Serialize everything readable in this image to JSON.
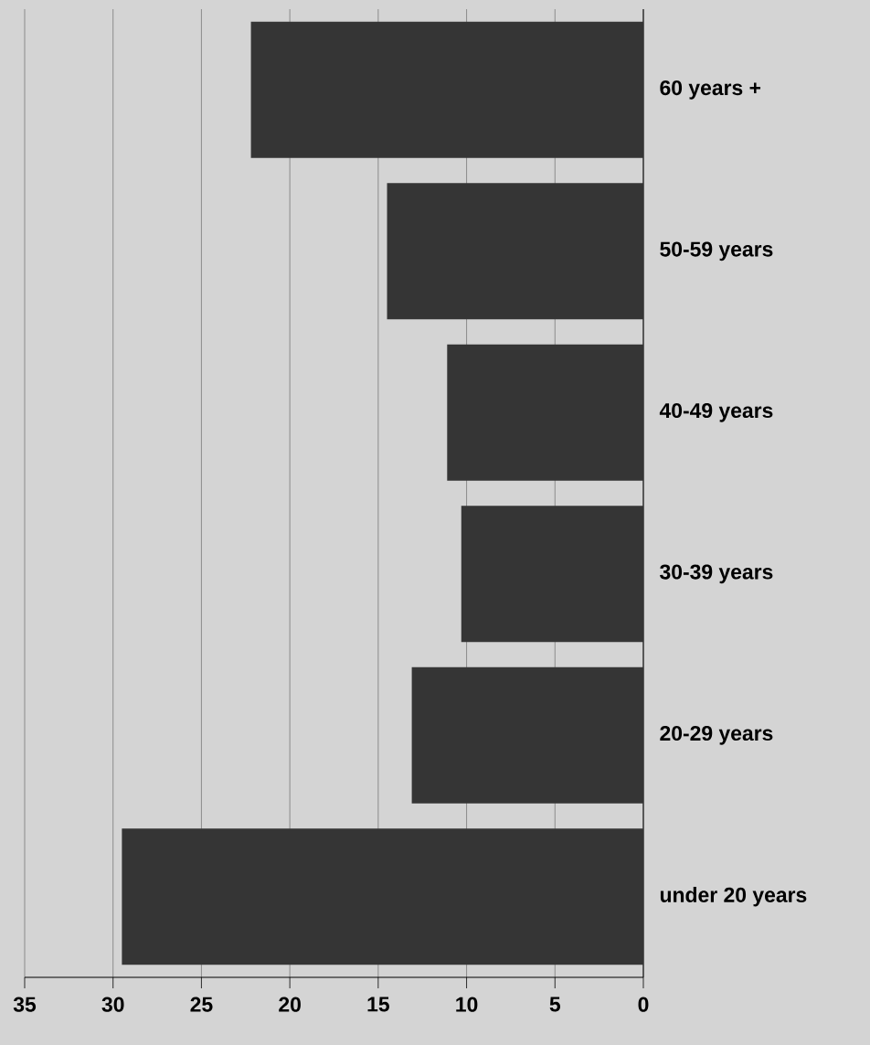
{
  "chart_data": {
    "type": "bar",
    "orientation": "horizontal",
    "categories": [
      "60 years +",
      "50-59 years",
      "40-49 years",
      "30-39 years",
      "20-29 years",
      "under 20 years"
    ],
    "values": [
      22.2,
      14.5,
      11.1,
      10.3,
      13.1,
      29.5
    ],
    "color": "#353535",
    "xlim": [
      35,
      0
    ],
    "xticks": [
      35,
      30,
      25,
      20,
      15,
      10,
      5,
      0
    ],
    "grid": "x"
  }
}
